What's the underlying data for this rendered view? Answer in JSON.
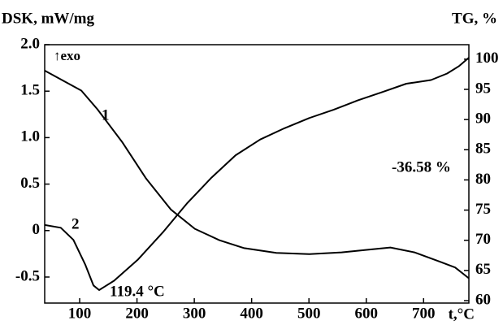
{
  "chart_data": {
    "type": "line",
    "ylabel": "DSK, mW/mg",
    "y2label": "TG, %",
    "xlabel": "t,°C",
    "xlim": [
      39,
      779
    ],
    "xticks": [
      100,
      200,
      300,
      400,
      500,
      600,
      700
    ],
    "ylim": [
      -0.78,
      2.0
    ],
    "yticks": [
      {
        "value": 2.0,
        "label": "2.0"
      },
      1.5,
      {
        "value": 1.0,
        "label": "1.0"
      },
      0.5,
      0,
      -0.5
    ],
    "y2lim": [
      59.6,
      102.4
    ],
    "y2ticks": [
      60,
      65,
      70,
      75,
      80,
      85,
      90,
      95,
      100
    ],
    "series": [
      {
        "name": "1",
        "color": "#000000",
        "axis": "y2",
        "x": [
          39,
          103,
          131,
          174,
          216,
          259,
          301,
          344,
          387,
          443,
          500,
          557,
          599,
          642,
          684,
          727,
          755,
          779
        ],
        "values": [
          98.1,
          94.8,
          91.7,
          86.3,
          80.2,
          75.1,
          71.9,
          70.0,
          68.7,
          67.9,
          67.7,
          68.0,
          68.4,
          68.8,
          68.0,
          66.5,
          65.5,
          63.7
        ]
      },
      {
        "name": "2",
        "color": "#000000",
        "x": [
          39,
          67,
          89,
          110,
          124,
          134,
          160,
          202,
          245,
          287,
          330,
          372,
          415,
          457,
          500,
          543,
          585,
          628,
          670,
          713,
          741,
          762,
          779
        ],
        "values": [
          0.06,
          0.03,
          -0.1,
          -0.37,
          -0.59,
          -0.64,
          -0.54,
          -0.31,
          -0.02,
          0.29,
          0.57,
          0.81,
          0.98,
          1.1,
          1.21,
          1.3,
          1.4,
          1.49,
          1.58,
          1.62,
          1.69,
          1.77,
          1.86
        ]
      }
    ],
    "annotations": [
      "↑exo",
      "119.4 °C",
      "-36.58 %"
    ]
  }
}
